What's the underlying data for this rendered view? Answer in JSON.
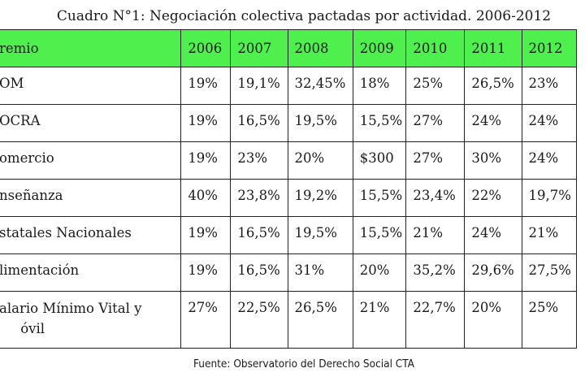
{
  "title": "Cuadro N°1: Negociación colectiva pactadas por actividad. 2006-2012",
  "headers": [
    "remio",
    "2006",
    "2007",
    "2008",
    "2009",
    "2010",
    "2011",
    "2012"
  ],
  "rows": [
    [
      "OM",
      "19%",
      "19,1%",
      "32,45%",
      "18%",
      "25%",
      "26,5%",
      "23%"
    ],
    [
      "OCRA",
      "19%",
      "16,5%",
      "19,5%",
      "15,5%",
      "27%",
      "24%",
      "24%"
    ],
    [
      "omercio",
      "19%",
      "23%",
      "20%",
      "$300",
      "27%",
      "30%",
      "24%"
    ],
    [
      "nseñanza",
      "40%",
      "23,8%",
      "19,2%",
      "15,5%",
      "23,4%",
      "22%",
      "19,7%"
    ],
    [
      "statales Nacionales",
      "19%",
      "16,5%",
      "19,5%",
      "15,5%",
      "21%",
      "24%",
      "21%"
    ],
    [
      "limentación",
      "19%",
      "16,5%",
      "31%",
      "20%",
      "35,2%",
      "29,6%",
      "27,5%"
    ],
    [
      "alario Mínimo Vital y               óvil",
      "27%",
      "22,5%",
      "26,5%",
      "21%",
      "22,7%",
      "20%",
      "25%"
    ]
  ],
  "source": "Fuente: Observatorio del Derecho Social CTA",
  "colors": {
    "header_bg": "#4ef04e",
    "border": "#222222"
  }
}
